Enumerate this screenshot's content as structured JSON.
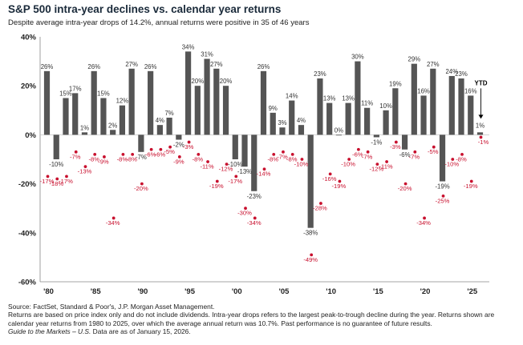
{
  "chart_data": {
    "type": "bar",
    "title": "S&P 500 intra-year declines vs. calendar year returns",
    "subtitle": "Despite average intra-year drops of 14.2%, annual returns were positive in 35 of 46 years",
    "ylim": [
      -60,
      40
    ],
    "y_ticks": [
      "40%",
      "20%",
      "0%",
      "-20%",
      "-40%",
      "-60%"
    ],
    "x_tick_labels": [
      "'80",
      "'85",
      "'90",
      "'95",
      "'00",
      "'05",
      "'10",
      "'15",
      "'20",
      "'25"
    ],
    "years": [
      1980,
      1981,
      1982,
      1983,
      1984,
      1985,
      1986,
      1987,
      1988,
      1989,
      1990,
      1991,
      1992,
      1993,
      1994,
      1995,
      1996,
      1997,
      1998,
      1999,
      2000,
      2001,
      2002,
      2003,
      2004,
      2005,
      2006,
      2007,
      2008,
      2009,
      2010,
      2011,
      2012,
      2013,
      2014,
      2015,
      2016,
      2017,
      2018,
      2019,
      2020,
      2021,
      2022,
      2023,
      2024,
      2025,
      2026
    ],
    "series": [
      {
        "name": "calendar year returns",
        "color": "#555555",
        "values": [
          26,
          -10,
          15,
          17,
          1,
          26,
          15,
          2,
          12,
          27,
          -7,
          26,
          4,
          7,
          -2,
          34,
          20,
          31,
          27,
          20,
          -10,
          -13,
          -23,
          26,
          9,
          3,
          14,
          4,
          -38,
          23,
          13,
          0,
          13,
          30,
          11,
          -1,
          10,
          19,
          -6,
          29,
          16,
          27,
          -19,
          24,
          23,
          16,
          1
        ],
        "labels": [
          "26%",
          "-10%",
          "15%",
          "17%",
          "1%",
          "26%",
          "15%",
          "2%",
          "12%",
          "27%",
          "-7%",
          "26%",
          "4%",
          "7%",
          "-2%",
          "34%",
          "20%",
          "31%",
          "27%",
          "20%",
          "-10%",
          "-13%",
          "-23%",
          "26%",
          "9%",
          "3%",
          "14%",
          "4%",
          "-38%",
          "23%",
          "13%",
          "0%",
          "13%",
          "30%",
          "11%",
          "-1%",
          "10%",
          "19%",
          "-6%",
          "29%",
          "16%",
          "27%",
          "-19%",
          "24%",
          "23%",
          "16%",
          "1%"
        ]
      },
      {
        "name": "intra-year declines",
        "color": "#c8102e",
        "values": [
          -17,
          -18,
          -17,
          -7,
          -13,
          -8,
          -9,
          -34,
          -8,
          -8,
          -20,
          -6,
          -6,
          -5,
          -9,
          -3,
          -8,
          -11,
          -19,
          -12,
          -17,
          -30,
          -34,
          -14,
          -8,
          -7,
          -8,
          -10,
          -49,
          -28,
          -16,
          -19,
          -10,
          -6,
          -7,
          -12,
          -11,
          -3,
          -20,
          -7,
          -34,
          -5,
          -25,
          -10,
          -8,
          -19,
          -1
        ],
        "labels": [
          "-17%",
          "-18%",
          "-17%",
          "-7%",
          "-13%",
          "-8%",
          "-9%",
          "-34%",
          "-8%",
          "-8%",
          "-20%",
          "-6%",
          "-6%",
          "-5%",
          "-9%",
          "-3%",
          "-8%",
          "-11%",
          "-19%",
          "-12%",
          "-17%",
          "-30%",
          "-34%",
          "-14%",
          "-8%",
          "-7%",
          "-8%",
          "-10%",
          "-49%",
          "-28%",
          "-16%",
          "-19%",
          "-10%",
          "-6%",
          "-7%",
          "-12%",
          "-11%",
          "-3%",
          "-20%",
          "-7%",
          "-34%",
          "-5%",
          "-25%",
          "-10%",
          "-8%",
          "-19%",
          "-1%"
        ]
      }
    ],
    "ytd_label": "YTD",
    "grid": false,
    "legend": "none"
  },
  "footer": {
    "source": "Source: FactSet, Standard & Poor's, J.P. Morgan Asset Management.",
    "notes": "Returns are based on price index only and do not include dividends. Intra-year drops refers to the largest peak-to-trough decline during the year. Returns shown are calendar year returns from 1980 to 2025, over which the average annual return was 10.7%. Past performance is no guarantee of future results.",
    "guide": "Guide to the Markets – U.S.",
    "asof": " Data are as of January 15, 2026."
  }
}
